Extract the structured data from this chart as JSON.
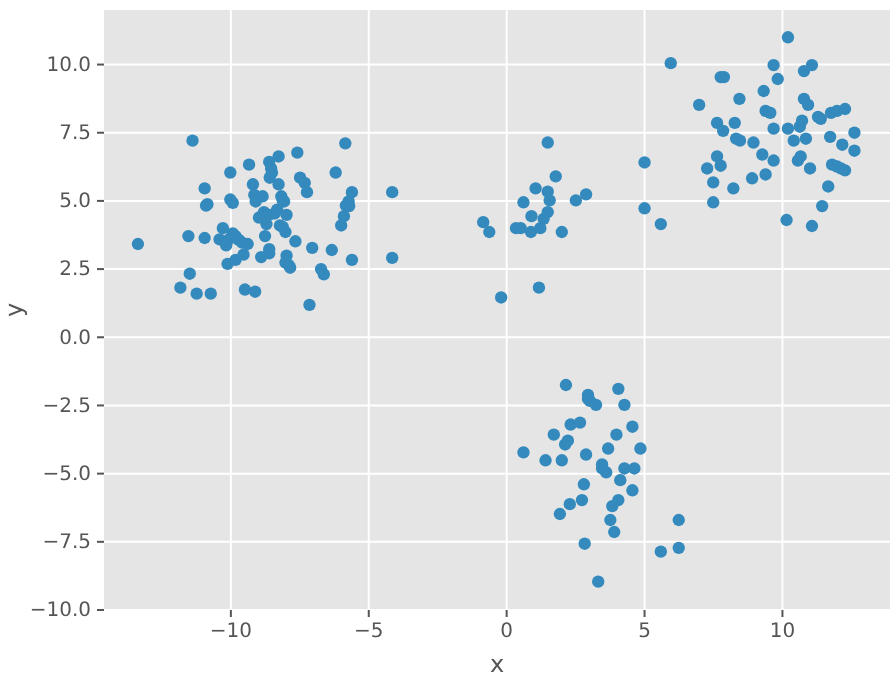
{
  "chart_data": {
    "type": "scatter",
    "xlabel": "x",
    "ylabel": "y",
    "xlim": [
      -14.6,
      13.9
    ],
    "ylim": [
      -10,
      12
    ],
    "xticks": [
      {
        "value": -10,
        "label": "−10"
      },
      {
        "value": -5,
        "label": "−5"
      },
      0,
      5,
      10
    ],
    "yticks": [
      {
        "value": -10,
        "label": "−10.0"
      },
      {
        "value": -7.5,
        "label": "−7.5"
      },
      {
        "value": -5,
        "label": "−5.0"
      },
      {
        "value": -2.5,
        "label": "−2.5"
      },
      {
        "value": 0,
        "label": "0.0"
      },
      {
        "value": 2.5,
        "label": "2.5"
      },
      {
        "value": 5,
        "label": "5.0"
      },
      {
        "value": 7.5,
        "label": "7.5"
      },
      {
        "value": 10,
        "label": "10.0"
      }
    ],
    "grid": true,
    "marker": "circle",
    "series": [
      {
        "color": "#348abd",
        "x": [
          -13.37,
          -11.83,
          -11.54,
          -11.49,
          -11.39,
          -11.24,
          -10.95,
          -10.9,
          -10.85,
          -10.95,
          -10.73,
          -10.41,
          -10.29,
          -10.17,
          -10.12,
          -10.02,
          -10.02,
          -9.93,
          -9.93,
          -10.07,
          -9.83,
          -9.83,
          -9.71,
          -9.59,
          -9.54,
          -9.49,
          -9.39,
          -9.34,
          -9.2,
          -9.15,
          -9.12,
          -9.1,
          -8.98,
          -8.9,
          -8.85,
          -8.8,
          -8.76,
          -8.71,
          -8.63,
          -8.61,
          -8.61,
          -8.59,
          -8.61,
          -8.54,
          -8.51,
          -8.41,
          -8.32,
          -8.27,
          -8.27,
          -8.22,
          -8.17,
          -8.12,
          -8.07,
          -8.12,
          -8.02,
          -8.02,
          -7.98,
          -7.98,
          -7.9,
          -7.85,
          -7.66,
          -7.59,
          -7.49,
          -7.32,
          -7.24,
          -7.15,
          -7.05,
          -6.73,
          -6.63,
          -6.34,
          -6.2,
          -6,
          -5.9,
          -5.85,
          -5.83,
          -5.73,
          -5.71,
          -5.61,
          -5.61,
          -4.15,
          -4.15,
          -0.85,
          -0.63,
          -0.2,
          0.34,
          0.51,
          0.61,
          0.88,
          0.9,
          1.05,
          1.17,
          1.22,
          1.34,
          1.49,
          1.49,
          1.49,
          1.56,
          1.78,
          2,
          2.51,
          2.88,
          5,
          5,
          5.59,
          5.95,
          6.98,
          7.27,
          7.49,
          7.49,
          7.63,
          7.63,
          7.76,
          7.88,
          7.76,
          7.85,
          8.22,
          8.27,
          8.32,
          8.44,
          8.46,
          8.9,
          8.95,
          9.27,
          9.32,
          9.39,
          9.39,
          9.56,
          9.68,
          9.68,
          9.68,
          9.83,
          10.15,
          10.2,
          10.2,
          10.41,
          10.56,
          10.63,
          10.66,
          10.71,
          10.78,
          10.78,
          10.85,
          10.93,
          11,
          11.07,
          11.07,
          11.29,
          11.39,
          11.44,
          11.66,
          11.73,
          11.76,
          11.8,
          11.98,
          11.98,
          12.12,
          12.17,
          12.27,
          12.27,
          12.61,
          12.61,
          0.61,
          1.41,
          1.71,
          2,
          1.93,
          2.15,
          2.12,
          2.22,
          2.32,
          2.29,
          2.66,
          2.73,
          2.8,
          2.83,
          2.88,
          2.95,
          2.95,
          3.02,
          3.24,
          3.32,
          3.46,
          3.46,
          3.61,
          3.68,
          3.76,
          3.83,
          3.9,
          3.98,
          4.05,
          4.05,
          4.12,
          4.27,
          4.27,
          4.56,
          4.56,
          4.63,
          4.85,
          5.59,
          6.24,
          6.24
        ],
        "values": [
          3.42,
          1.82,
          3.71,
          2.33,
          7.21,
          1.6,
          5.46,
          4.83,
          4.88,
          3.64,
          1.6,
          3.59,
          4,
          3.37,
          2.69,
          6.04,
          5.05,
          4.93,
          3.81,
          3.59,
          3.71,
          2.84,
          3.57,
          3.47,
          3.03,
          1.75,
          3.42,
          6.33,
          5.61,
          5.22,
          1.67,
          4.98,
          4.39,
          2.94,
          5.17,
          4.59,
          3.71,
          4.15,
          4.49,
          3.23,
          3.08,
          5.85,
          6.43,
          6.19,
          6.04,
          4.54,
          4.68,
          6.63,
          5.61,
          4.1,
          5.17,
          5.02,
          4.98,
          4.05,
          3.86,
          2.74,
          4.49,
          2.99,
          2.65,
          2.55,
          3.52,
          6.77,
          5.85,
          5.66,
          5.32,
          1.19,
          3.28,
          2.5,
          2.31,
          3.2,
          6.04,
          4.1,
          4.44,
          7.11,
          4.83,
          4.98,
          4.81,
          5.32,
          2.84,
          5.32,
          2.91,
          4.22,
          3.86,
          1.46,
          4,
          4,
          4.95,
          3.86,
          4.44,
          5.46,
          1.82,
          4,
          4.34,
          5.34,
          7.14,
          4.59,
          5.02,
          5.9,
          3.86,
          5.02,
          5.24,
          6.41,
          4.73,
          4.15,
          10.05,
          8.52,
          6.19,
          5.68,
          4.95,
          6.63,
          7.86,
          9.54,
          9.54,
          6.29,
          7.57,
          5.46,
          7.86,
          7.28,
          8.74,
          7.21,
          5.83,
          7.14,
          6.7,
          9.03,
          5.97,
          8.3,
          8.23,
          9.98,
          7.65,
          6.48,
          9.47,
          4.3,
          11,
          7.65,
          7.21,
          6.48,
          7.72,
          6.63,
          7.94,
          9.76,
          8.74,
          7.28,
          8.52,
          6.19,
          9.98,
          4.08,
          8.08,
          8.01,
          4.81,
          5.53,
          7.35,
          8.23,
          6.33,
          8.3,
          6.26,
          6.19,
          7.06,
          8.37,
          6.12,
          7.5,
          6.84,
          -4.22,
          -4.51,
          -3.57,
          -4.51,
          -6.48,
          -1.75,
          -3.93,
          -3.79,
          -3.2,
          -6.12,
          -3.13,
          -5.97,
          -5.39,
          -7.57,
          -4.3,
          -2.11,
          -2.26,
          -2.33,
          -2.48,
          -8.96,
          -4.66,
          -4.81,
          -4.95,
          -4.08,
          -6.7,
          -6.19,
          -7.14,
          -3.57,
          -1.89,
          -5.97,
          -5.24,
          -2.48,
          -4.81,
          -3.28,
          -5.61,
          -4.81,
          -4.08,
          -7.86,
          -6.7,
          -7.72
        ]
      }
    ]
  }
}
